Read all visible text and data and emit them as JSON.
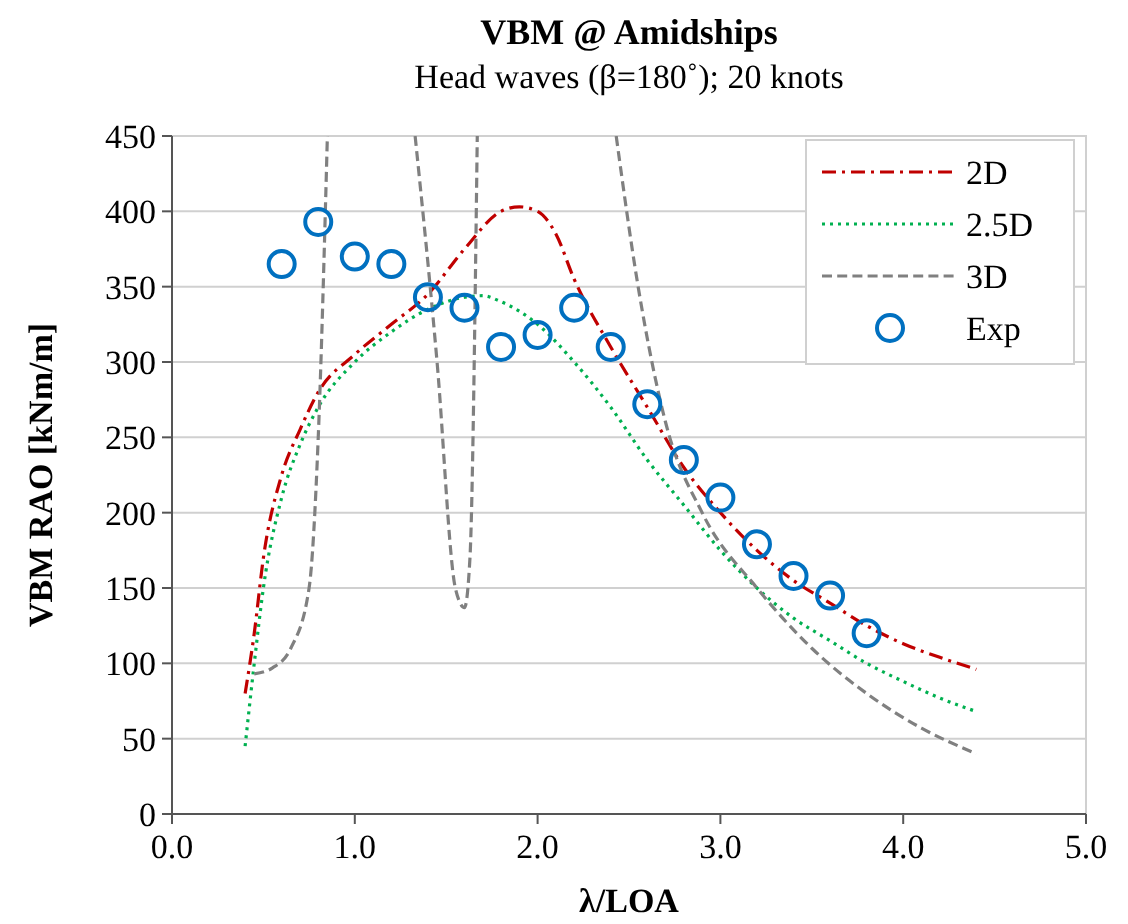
{
  "chart_data": {
    "type": "line",
    "title": "VBM @ Amidships",
    "subtitle": "Head waves (β=180˚); 20 knots",
    "xlabel": "λ/LOA",
    "ylabel": "VBM RAO [kNm/m]",
    "xlim": [
      0,
      5
    ],
    "xticks": [
      {
        "value": 0,
        "label": "0.0"
      },
      {
        "value": 1,
        "label": "1.0"
      },
      {
        "value": 2,
        "label": "2.0"
      },
      {
        "value": 3,
        "label": "3.0"
      },
      {
        "value": 4,
        "label": "4.0"
      },
      {
        "value": 5,
        "label": "5.0"
      }
    ],
    "ylim": [
      0,
      450
    ],
    "yticks": [
      0,
      50,
      100,
      150,
      200,
      250,
      300,
      350,
      400,
      450
    ],
    "grid": "y",
    "legend": "top right",
    "series": [
      {
        "name": "2D",
        "color": "#c00000",
        "line_style": "dashdot",
        "x": [
          0.4,
          0.45,
          0.5,
          0.6,
          0.7,
          0.8,
          1.0,
          1.2,
          1.4,
          1.6,
          1.8,
          1.9,
          2.0,
          2.1,
          2.2,
          2.4,
          2.6,
          2.8,
          3.0,
          3.2,
          3.4,
          3.6,
          3.8,
          4.0,
          4.2,
          4.4
        ],
        "values": [
          80,
          120,
          170,
          225,
          255,
          280,
          305,
          325,
          345,
          375,
          400,
          403,
          400,
          385,
          355,
          310,
          270,
          230,
          200,
          175,
          155,
          140,
          125,
          113,
          104,
          96
        ]
      },
      {
        "name": "2.5D",
        "color": "#00b050",
        "line_style": "dotted",
        "x": [
          0.4,
          0.45,
          0.5,
          0.6,
          0.7,
          0.8,
          1.0,
          1.2,
          1.4,
          1.6,
          1.7,
          1.8,
          2.0,
          2.2,
          2.4,
          2.6,
          2.8,
          3.0,
          3.2,
          3.4,
          3.6,
          3.8,
          4.0,
          4.2,
          4.4
        ],
        "values": [
          45,
          100,
          150,
          210,
          245,
          270,
          300,
          320,
          335,
          343,
          344,
          340,
          325,
          300,
          270,
          235,
          205,
          175,
          150,
          130,
          115,
          100,
          88,
          77,
          68
        ]
      },
      {
        "name": "3D",
        "color": "#808080",
        "line_style": "dashed",
        "x": [
          0.45,
          0.55,
          0.65,
          0.75,
          0.8,
          0.85,
          0.86,
          1.33,
          1.45,
          1.55,
          1.6,
          1.63,
          1.67,
          1.68,
          2.43,
          2.55,
          2.7,
          2.9,
          3.2,
          3.5,
          3.8,
          4.1,
          4.4
        ],
        "values": [
          93,
          97,
          110,
          150,
          250,
          450,
          null,
          450,
          300,
          150,
          137,
          170,
          450,
          null,
          450,
          350,
          260,
          200,
          150,
          110,
          80,
          57,
          40
        ]
      },
      {
        "name": "Exp",
        "type": "scatter",
        "color": "#0070c0",
        "marker": "circle",
        "x": [
          0.6,
          0.8,
          1.0,
          1.2,
          1.4,
          1.6,
          1.8,
          2.0,
          2.2,
          2.4,
          2.6,
          2.8,
          3.0,
          3.2,
          3.4,
          3.6,
          3.8
        ],
        "values": [
          365,
          393,
          370,
          365,
          343,
          336,
          310,
          318,
          336,
          310,
          272,
          235,
          210,
          179,
          158,
          145,
          120
        ]
      }
    ]
  }
}
